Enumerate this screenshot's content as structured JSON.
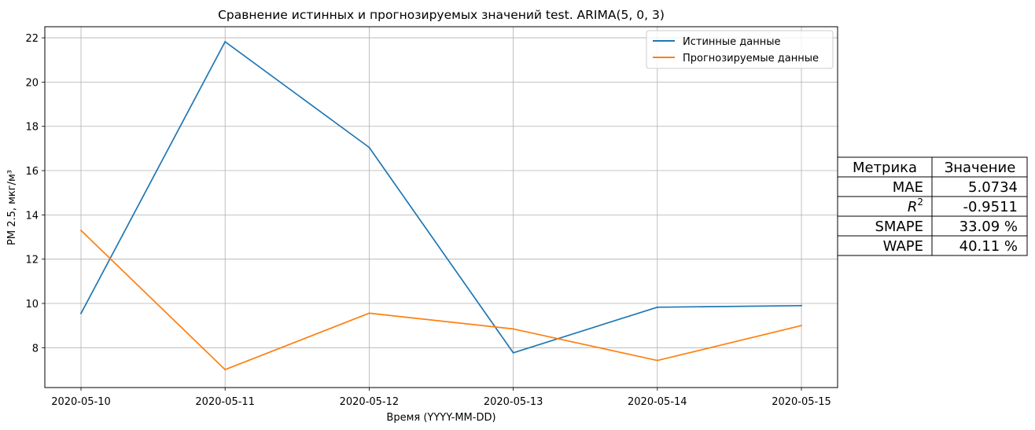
{
  "chart_data": {
    "type": "line",
    "title": "Сравнение истинных и прогнозируемых значений test. ARIMA(5, 0, 3)",
    "xlabel": "Время (YYYY-MM-DD)",
    "ylabel": "PM 2.5, мкг/м³",
    "x": [
      "2020-05-10",
      "2020-05-11",
      "2020-05-12",
      "2020-05-13",
      "2020-05-14",
      "2020-05-15"
    ],
    "ylim": [
      6.2,
      22.5
    ],
    "yticks": [
      8,
      10,
      12,
      14,
      16,
      18,
      20,
      22
    ],
    "grid": true,
    "legend_position": "top-right",
    "series": [
      {
        "name": "Истинные данные",
        "color": "#1f77b4",
        "values": [
          9.55,
          21.82,
          17.05,
          7.77,
          9.83,
          9.9
        ]
      },
      {
        "name": "Прогнозируемые данные",
        "color": "#ff7f0e",
        "values": [
          13.3,
          7.01,
          9.56,
          8.85,
          7.42,
          9.0
        ]
      }
    ]
  },
  "metrics_table": {
    "headers": [
      "Метрика",
      "Значение"
    ],
    "rows": [
      {
        "metric": "MAE",
        "value": "5.0734"
      },
      {
        "metric": "R",
        "superscript": "2",
        "value": "-0.9511"
      },
      {
        "metric": "SMAPE",
        "value": "33.09 %"
      },
      {
        "metric": "WAPE",
        "value": "40.11 %"
      }
    ]
  }
}
